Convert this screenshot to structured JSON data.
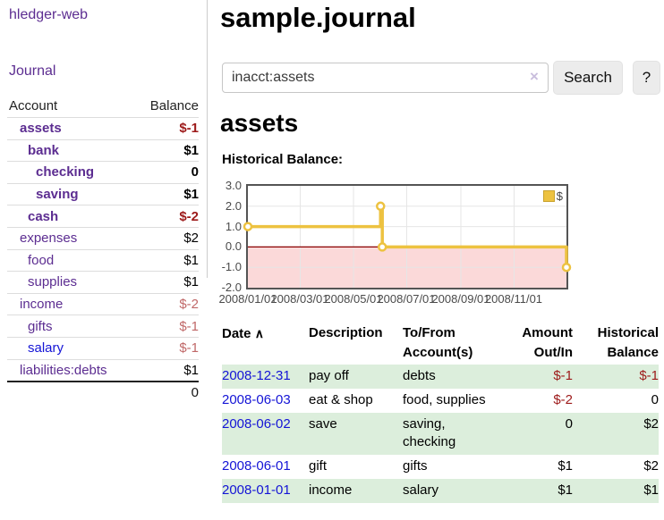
{
  "app": {
    "brand": "hledger-web",
    "nav_journal": "Journal"
  },
  "sidebar": {
    "headers": {
      "account": "Account",
      "balance": "Balance"
    },
    "accounts": [
      {
        "name": "assets",
        "balance": "$-1"
      },
      {
        "name": "bank",
        "balance": "$1"
      },
      {
        "name": "checking",
        "balance": "0"
      },
      {
        "name": "saving",
        "balance": "$1"
      },
      {
        "name": "cash",
        "balance": "$-2"
      },
      {
        "name": "expenses",
        "balance": "$2"
      },
      {
        "name": "food",
        "balance": "$1"
      },
      {
        "name": "supplies",
        "balance": "$1"
      },
      {
        "name": "income",
        "balance": "$-2"
      },
      {
        "name": "gifts",
        "balance": "$-1"
      },
      {
        "name": "salary",
        "balance": "$-1"
      },
      {
        "name": "liabilities:debts",
        "balance": "$1"
      }
    ],
    "total": "0"
  },
  "main": {
    "title": "sample.journal",
    "search": {
      "value": "inacct:assets",
      "clear_icon": "×",
      "button": "Search",
      "help_button": "?"
    },
    "section_title": "assets",
    "chart_label": "Historical Balance:"
  },
  "chart_data": {
    "type": "line",
    "title": "Historical Balance:",
    "series": [
      {
        "name": "$",
        "color": "#edc240",
        "step": true,
        "points": [
          [
            "2008-01-01",
            1
          ],
          [
            "2008-06-01",
            2
          ],
          [
            "2008-06-03",
            0
          ],
          [
            "2008-12-31",
            -1
          ]
        ]
      }
    ],
    "xlim": [
      "2008-01-01",
      "2008-12-31"
    ],
    "ylim": [
      -2,
      3
    ],
    "yticks": [
      {
        "value": 3,
        "label": "3.0"
      },
      {
        "value": 2,
        "label": "2.0"
      },
      {
        "value": 1,
        "label": "1.0"
      },
      {
        "value": 0,
        "label": "0.0"
      },
      {
        "value": -1,
        "label": "-1.0"
      },
      {
        "value": -2,
        "label": "-2.0"
      }
    ],
    "xticks": [
      {
        "date": "2008-01-01",
        "label": "2008/01/01"
      },
      {
        "date": "2008-03-01",
        "label": "2008/03/01"
      },
      {
        "date": "2008-05-01",
        "label": "2008/05/01"
      },
      {
        "date": "2008-07-01",
        "label": "2008/07/01"
      },
      {
        "date": "2008-09-01",
        "label": "2008/09/01"
      },
      {
        "date": "2008-11-01",
        "label": "2008/11/01"
      }
    ],
    "grid": true,
    "grid_color": "#e6e6e6",
    "zero_line_color": "#8b0000",
    "negative_region_color": "#fbd9d9",
    "legend": {
      "label": "$",
      "position": "top-right"
    }
  },
  "register": {
    "headers": {
      "date": "Date",
      "sort_icon": "∧",
      "description": "Description",
      "account": "To/From Account(s)",
      "amount": "Amount Out/In",
      "balance": "Historical Balance"
    },
    "rows": [
      {
        "date": "2008-12-31",
        "description": "pay off",
        "accounts": "debts",
        "amount": "$-1",
        "balance": "$-1"
      },
      {
        "date": "2008-06-03",
        "description": "eat & shop",
        "accounts": "food, supplies",
        "amount": "$-2",
        "balance": "0"
      },
      {
        "date": "2008-06-02",
        "description": "save",
        "accounts": "saving, checking",
        "amount": "0",
        "balance": "$2"
      },
      {
        "date": "2008-06-01",
        "description": "gift",
        "accounts": "gifts",
        "amount": "$1",
        "balance": "$2"
      },
      {
        "date": "2008-01-01",
        "description": "income",
        "accounts": "salary",
        "amount": "$1",
        "balance": "$1"
      }
    ]
  },
  "colors": {
    "link_purple": "#5c2d91",
    "link_blue": "#1414d6",
    "negative_strong": "#9d1a1a",
    "negative_light": "#c06868",
    "row_green": "#dceedc",
    "series_yellow": "#edc240",
    "zero_line": "#8b0000",
    "negative_region": "#fbd9d9"
  }
}
